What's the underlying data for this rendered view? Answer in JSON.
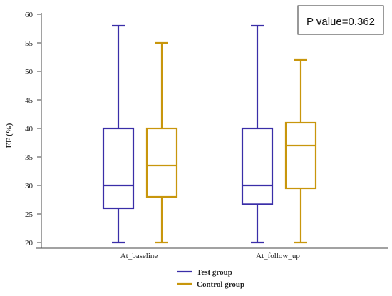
{
  "chart_data": {
    "type": "box",
    "ylabel": "EF (%)",
    "xlabel": "",
    "ylim": [
      19,
      61
    ],
    "yticks": [
      20,
      25,
      30,
      35,
      40,
      45,
      50,
      55,
      60
    ],
    "categories": [
      "At_baseline",
      "At_follow_up"
    ],
    "series": [
      {
        "name": "Test group",
        "color": "#3a2ea8",
        "boxes": [
          {
            "min": 20,
            "q1": 26,
            "median": 30,
            "q3": 40,
            "max": 58
          },
          {
            "min": 20,
            "q1": 26.7,
            "median": 30,
            "q3": 40,
            "max": 58
          }
        ]
      },
      {
        "name": "Control group",
        "color": "#c8960c",
        "boxes": [
          {
            "min": 20,
            "q1": 28,
            "median": 33.5,
            "q3": 40,
            "max": 55
          },
          {
            "min": 20,
            "q1": 29.5,
            "median": 37,
            "q3": 41,
            "max": 52
          }
        ]
      }
    ],
    "annotation": "P value=0.362",
    "legend_position": "bottom"
  }
}
